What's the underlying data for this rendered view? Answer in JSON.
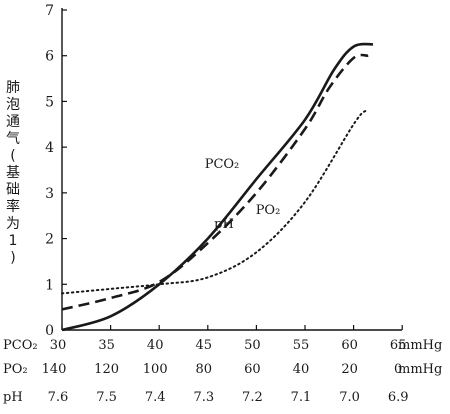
{
  "chart_data": {
    "type": "line",
    "ylabel_chars": [
      "肺",
      "泡",
      "通",
      "气",
      "(",
      "基",
      "础",
      "率",
      "为",
      "1",
      ")"
    ],
    "ylim": [
      0,
      7
    ],
    "yticks": [
      "0",
      "1",
      "2",
      "3",
      "4",
      "5",
      "6",
      "7"
    ],
    "x_rows": [
      {
        "name": "PCO₂",
        "labels": [
          "30",
          "35",
          "40",
          "45",
          "50",
          "55",
          "60",
          "65"
        ],
        "unit": "mmHg"
      },
      {
        "name": "PO₂",
        "labels": [
          "140",
          "120",
          "100",
          "80",
          "60",
          "40",
          "20",
          "0"
        ],
        "unit": "mmHg"
      },
      {
        "name": "pH",
        "labels": [
          "7.6",
          "7.5",
          "7.4",
          "7.3",
          "7.2",
          "7.1",
          "7.0",
          "6.9"
        ],
        "unit": ""
      }
    ],
    "series": [
      {
        "name": "PCO₂",
        "style": "solid",
        "x_axis": "PCO₂",
        "points": [
          [
            30,
            0.0
          ],
          [
            35,
            0.3
          ],
          [
            40,
            1.0
          ],
          [
            45,
            2.0
          ],
          [
            50,
            3.3
          ],
          [
            55,
            4.6
          ],
          [
            58,
            5.7
          ],
          [
            60,
            6.2
          ],
          [
            62,
            6.25
          ]
        ]
      },
      {
        "name": "pH",
        "style": "dashed",
        "x_axis": "pH",
        "points": [
          [
            7.6,
            0.45
          ],
          [
            7.5,
            0.7
          ],
          [
            7.4,
            1.05
          ],
          [
            7.3,
            1.9
          ],
          [
            7.2,
            3.0
          ],
          [
            7.1,
            4.4
          ],
          [
            7.05,
            5.3
          ],
          [
            7.0,
            5.95
          ],
          [
            6.97,
            6.0
          ]
        ]
      },
      {
        "name": "PO₂",
        "style": "dotted",
        "x_axis": "PO₂",
        "points": [
          [
            140,
            0.8
          ],
          [
            120,
            0.9
          ],
          [
            100,
            1.0
          ],
          [
            80,
            1.15
          ],
          [
            60,
            1.7
          ],
          [
            40,
            2.8
          ],
          [
            20,
            4.5
          ],
          [
            15,
            4.8
          ]
        ]
      }
    ],
    "annotations": [
      {
        "text": "PCO₂",
        "series": "PCO₂"
      },
      {
        "text": "pH",
        "series": "pH"
      },
      {
        "text": "PO₂",
        "series": "PO₂"
      }
    ],
    "grid": false
  }
}
